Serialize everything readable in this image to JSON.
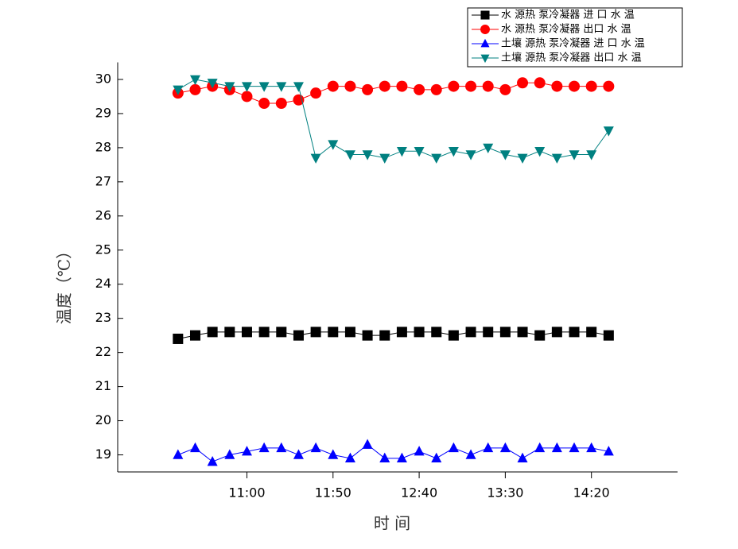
{
  "chart_data": {
    "type": "line",
    "xlabel": "时 间",
    "ylabel": "温度（℃）",
    "x": [
      620,
      630,
      640,
      650,
      660,
      670,
      680,
      690,
      700,
      710,
      720,
      730,
      740,
      750,
      760,
      770,
      780,
      790,
      800,
      810,
      820,
      830,
      840,
      850,
      860,
      870
    ],
    "xlim": [
      585,
      910
    ],
    "xticks": [
      {
        "value": 660,
        "label": "11:00"
      },
      {
        "value": 710,
        "label": "11:50"
      },
      {
        "value": 760,
        "label": "12:40"
      },
      {
        "value": 810,
        "label": "13:30"
      },
      {
        "value": 860,
        "label": "14:20"
      }
    ],
    "ylim": [
      18.5,
      30.5
    ],
    "yticks": [
      19,
      20,
      21,
      22,
      23,
      24,
      25,
      26,
      27,
      28,
      29,
      30
    ],
    "legend": "top-right",
    "series": [
      {
        "name": "水 源热 泵冷凝器 进 口 水 温",
        "color": "#000000",
        "marker": "square",
        "values": [
          22.4,
          22.5,
          22.6,
          22.6,
          22.6,
          22.6,
          22.6,
          22.5,
          22.6,
          22.6,
          22.6,
          22.5,
          22.5,
          22.6,
          22.6,
          22.6,
          22.5,
          22.6,
          22.6,
          22.6,
          22.6,
          22.5,
          22.6,
          22.6,
          22.6,
          22.5
        ]
      },
      {
        "name": "水 源热 泵冷凝器 出口 水 温",
        "color": "#ff0000",
        "marker": "circle",
        "values": [
          29.6,
          29.7,
          29.8,
          29.7,
          29.5,
          29.3,
          29.3,
          29.4,
          29.6,
          29.8,
          29.8,
          29.7,
          29.8,
          29.8,
          29.7,
          29.7,
          29.8,
          29.8,
          29.8,
          29.7,
          29.9,
          29.9,
          29.8,
          29.8,
          29.8,
          29.8
        ]
      },
      {
        "name": "土壤 源热 泵冷凝器 进 口 水 温",
        "color": "#0000ff",
        "marker": "triangle-up",
        "values": [
          19.0,
          19.2,
          18.8,
          19.0,
          19.1,
          19.2,
          19.2,
          19.0,
          19.2,
          19.0,
          18.9,
          19.3,
          18.9,
          18.9,
          19.1,
          18.9,
          19.2,
          19.0,
          19.2,
          19.2,
          18.9,
          19.2,
          19.2,
          19.2,
          19.2,
          19.1
        ]
      },
      {
        "name": "土壤 源热 泵冷凝器 出口 水 温",
        "color": "#008080",
        "marker": "triangle-down",
        "values": [
          29.7,
          30.0,
          29.9,
          29.8,
          29.8,
          29.8,
          29.8,
          29.8,
          27.7,
          28.1,
          27.8,
          27.8,
          27.7,
          27.9,
          27.9,
          27.7,
          27.9,
          27.8,
          28.0,
          27.8,
          27.7,
          27.9,
          27.7,
          27.8,
          27.8,
          28.5
        ]
      }
    ]
  }
}
